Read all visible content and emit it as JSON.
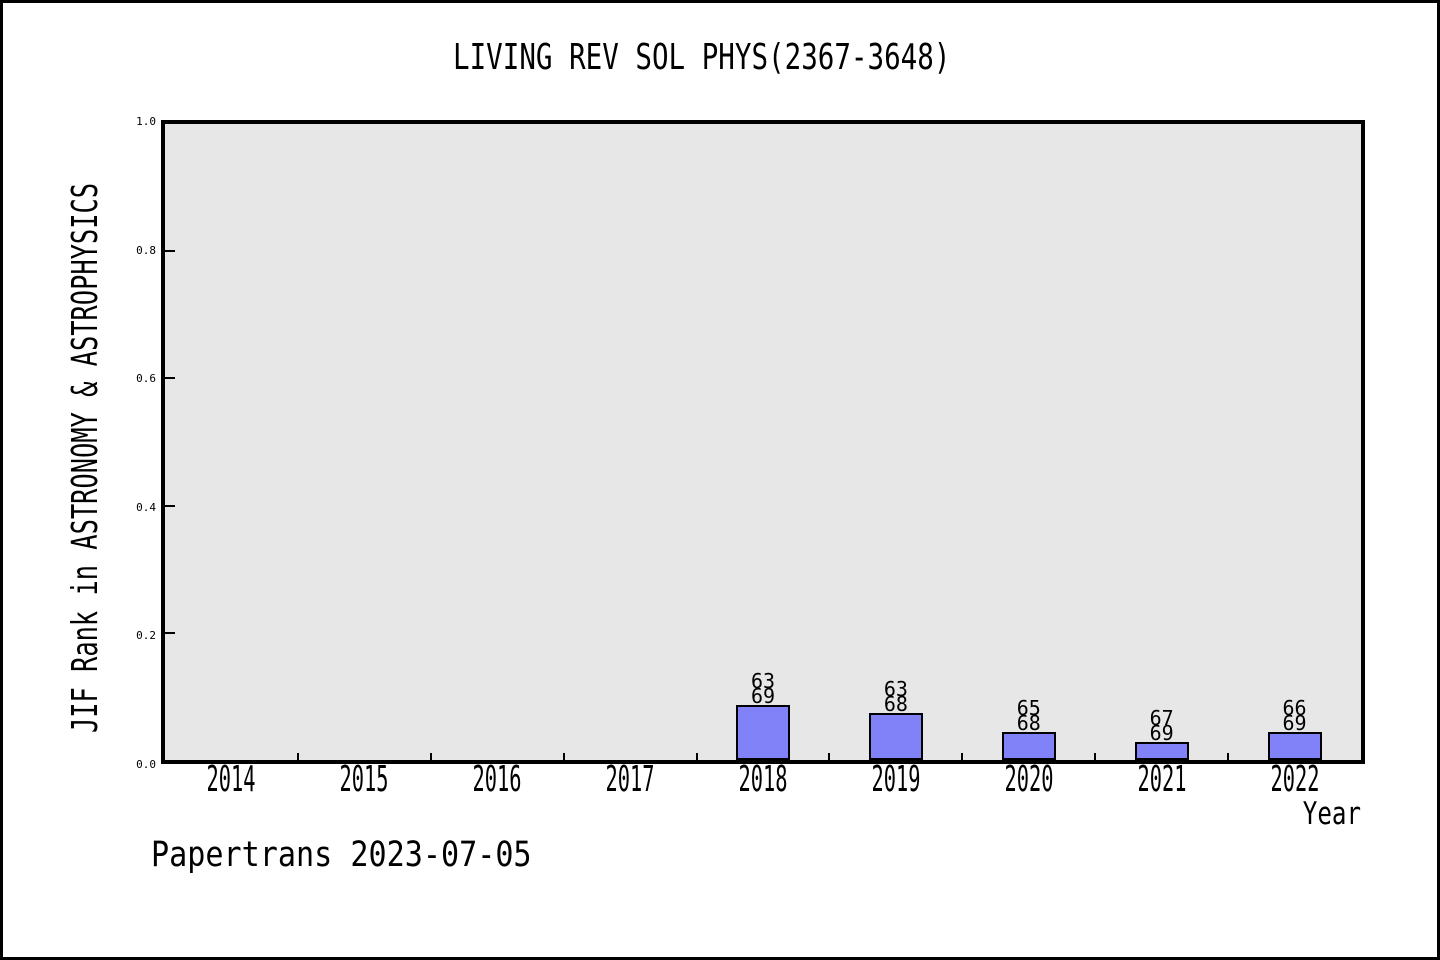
{
  "chart_data": {
    "type": "bar",
    "title": "LIVING REV SOL PHYS(2367-3648)",
    "xlabel": "Year",
    "ylabel": "JIF Rank in ASTRONOMY & ASTROPHYSICS",
    "x_categories": [
      "2014",
      "2015",
      "2016",
      "2017",
      "2018",
      "2019",
      "2020",
      "2021",
      "2022"
    ],
    "y_ticks": [
      "0.0",
      "0.2",
      "0.4",
      "0.6",
      "0.8",
      "1.0"
    ],
    "ylim": [
      0.0,
      1.0
    ],
    "grid": false,
    "legend": "none",
    "plot_bg_color": "#e7e7e7",
    "bar_color": "#8181f8",
    "bar_edge_color": "#000000",
    "bars": [
      {
        "category": "2018",
        "label_top": "63",
        "label_bottom": "69",
        "rank": 63,
        "out_of": 69,
        "value": 0.087
      },
      {
        "category": "2019",
        "label_top": "63",
        "label_bottom": "68",
        "rank": 63,
        "out_of": 68,
        "value": 0.0735
      },
      {
        "category": "2020",
        "label_top": "65",
        "label_bottom": "68",
        "rank": 65,
        "out_of": 68,
        "value": 0.0441
      },
      {
        "category": "2021",
        "label_top": "67",
        "label_bottom": "69",
        "rank": 67,
        "out_of": 69,
        "value": 0.029
      },
      {
        "category": "2022",
        "label_top": "66",
        "label_bottom": "69",
        "rank": 66,
        "out_of": 69,
        "value": 0.0435
      }
    ]
  },
  "footer": {
    "text": "Papertrans 2023-07-05"
  }
}
